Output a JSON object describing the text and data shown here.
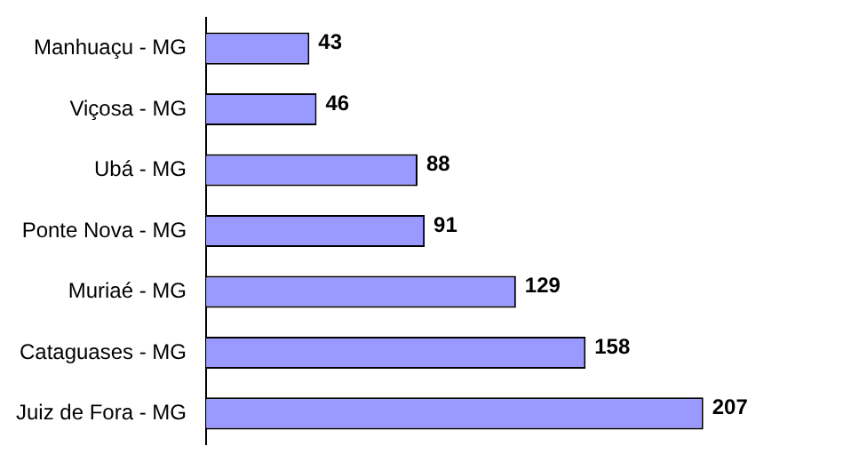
{
  "chart_data": {
    "type": "bar",
    "orientation": "horizontal",
    "categories": [
      "Manhuaçu - MG",
      "Viçosa - MG",
      "Ubá - MG",
      "Ponte Nova - MG",
      "Muriaé - MG",
      "Cataguases - MG",
      "Juiz de Fora - MG"
    ],
    "values": [
      43,
      46,
      88,
      91,
      129,
      158,
      207
    ],
    "color": "#9999ff",
    "data_labels": true,
    "grid": false,
    "legend": false
  }
}
